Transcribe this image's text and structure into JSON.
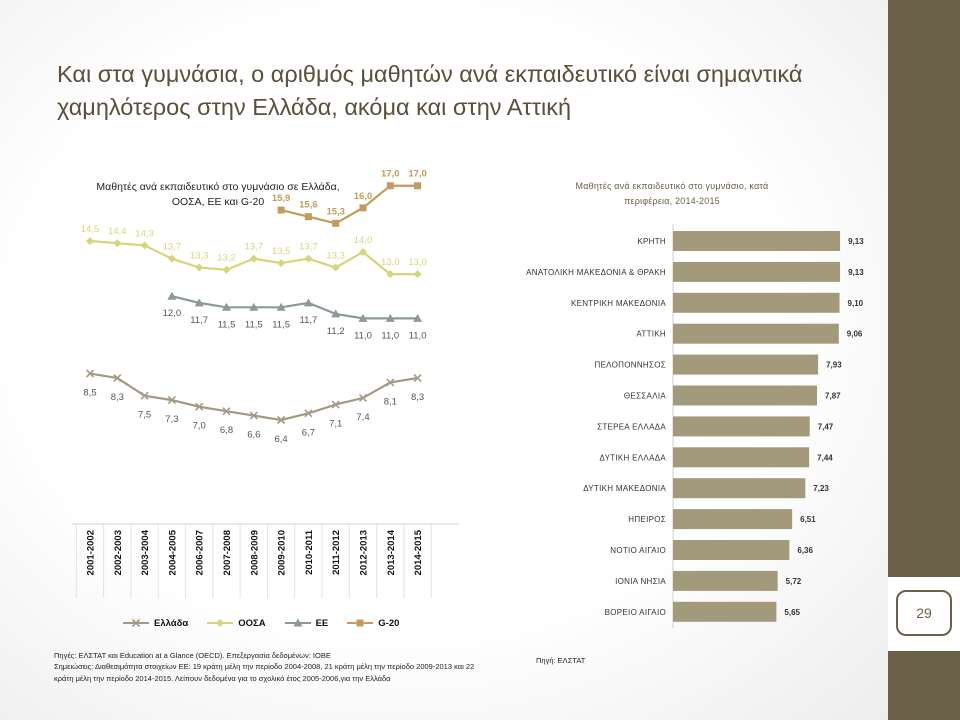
{
  "slide": {
    "title": "Και στα γυμνάσια, ο αριθμός μαθητών ανά εκπαιδευτικό είναι σημαντικά χαμηλότερος στην Ελλάδα, ακόμα και στην Αττική",
    "page_number": "29",
    "footer_left": "Πηγές: ΕΛΣΤΑΤ και Education at a Glance (OECD). Επεξεργασία δεδομένων: ΙΟΒΕ\nΣημειώσεις: Διαθεσιμότητα στοιχείων ΕΕ: 19 κράτη μέλη την περίοδο 2004-2008, 21 κράτη μέλη την περίοδο 2009-2013 και 22 κράτη μέλη την περίοδο 2014-2015. Λείπουν δεδομένα για το σχολικό έτος 2005-2006,για την Ελλάδα",
    "footer_right": "Πηγή: ΕΛΣΤΑΤ",
    "colors": {
      "band": "#6b6048",
      "title": "#5a4f3b"
    }
  },
  "chart_data": [
    {
      "type": "line",
      "title": "Μαθητές ανά εκπαιδευτικό στο γυμνάσιο σε Ελλάδα,\nΟΟΣΑ, ΕΕ και G-20",
      "categories": [
        "2001-2002",
        "2002-2003",
        "2003-2004",
        "2004-2005",
        "2006-2007",
        "2007-2008",
        "2008-2009",
        "2009-2010",
        "2010-2011",
        "2011-2012",
        "2012-2013",
        "2013-2014",
        "2014-2015"
      ],
      "legend_position": "bottom",
      "series": [
        {
          "name": "Ελλάδα",
          "color": "#a39a84",
          "marker": "x",
          "values": [
            8.5,
            8.3,
            7.5,
            7.3,
            7.0,
            6.8,
            6.6,
            6.4,
            6.7,
            7.1,
            7.4,
            8.1,
            8.3
          ],
          "labels": [
            "8,5",
            "8,3",
            "7,5",
            "7,3",
            "7,0",
            "6,8",
            "6,6",
            "6,4",
            "6,7",
            "7,1",
            "7,4",
            "8,1",
            "8,3"
          ]
        },
        {
          "name": "ΟΟΣΑ",
          "color": "#d7d57b",
          "marker": "diamond",
          "values": [
            14.5,
            14.4,
            14.3,
            13.7,
            13.3,
            13.2,
            13.7,
            13.5,
            13.7,
            13.3,
            14.0,
            13.0,
            13.0
          ],
          "labels": [
            "14,5",
            "14,4",
            "14,3",
            "13,7",
            "13,3",
            "13,2",
            "13,7",
            "13,5",
            "13,7",
            "13,3",
            "14,0",
            "13,0",
            "13,0"
          ]
        },
        {
          "name": "ΕΕ",
          "color": "#8c9a97",
          "marker": "triangle",
          "values": [
            null,
            null,
            null,
            12.0,
            11.7,
            11.5,
            11.5,
            11.5,
            11.7,
            11.2,
            11.0,
            11.0,
            11.0
          ],
          "labels": [
            null,
            null,
            null,
            "12,0",
            "11,7",
            "11,5",
            "11,5",
            "11,5",
            "11,7",
            "11,2",
            "11,0",
            "11,0",
            "11,0"
          ]
        },
        {
          "name": "G-20",
          "color": "#c49a5e",
          "marker": "square",
          "values": [
            null,
            null,
            null,
            null,
            null,
            null,
            null,
            15.9,
            15.6,
            15.3,
            16.0,
            17.0,
            17.0
          ],
          "labels": [
            null,
            null,
            null,
            null,
            null,
            null,
            null,
            "15,9",
            "15,6",
            "15,3",
            "16,0",
            "17,0",
            "17,0"
          ]
        }
      ]
    },
    {
      "type": "bar",
      "orientation": "horizontal",
      "title": "Μαθητές ανά εκπαιδευτικό στο γυμνάσιο, κατά\nπεριφέρεια, 2014-2015",
      "bar_color": "#a39a7c",
      "categories": [
        "ΚΡΗΤΗ",
        "ΑΝΑΤΟΛΙΚΗ ΜΑΚΕΔΟΝΙΑ & ΘΡΑΚΗ",
        "ΚΕΝΤΡΙΚΗ ΜΑΚΕΔΟΝΙΑ",
        "ΑΤΤΙΚΗ",
        "ΠΕΛΟΠΟΝΝΗΣΟΣ",
        "ΘΕΣΣΑΛΙΑ",
        "ΣΤΕΡΕΑ ΕΛΛΑΔΑ",
        "ΔΥΤΙΚΗ ΕΛΛΑΔΑ",
        "ΔΥΤΙΚΗ ΜΑΚΕΔΟΝΙΑ",
        "ΗΠΕΙΡΟΣ",
        "ΝΟΤΙΟ ΑΙΓΑΙΟ",
        "ΙΟΝΙΑ ΝΗΣΙΑ",
        "ΒΟΡΕΙΟ ΑΙΓΑΙΟ"
      ],
      "values": [
        9.13,
        9.13,
        9.1,
        9.06,
        7.93,
        7.87,
        7.47,
        7.44,
        7.23,
        6.51,
        6.36,
        5.72,
        5.65
      ],
      "labels": [
        "9,13",
        "9,13",
        "9,10",
        "9,06",
        "7,93",
        "7,87",
        "7,47",
        "7,44",
        "7,23",
        "6,51",
        "6,36",
        "5,72",
        "5,65"
      ]
    }
  ]
}
